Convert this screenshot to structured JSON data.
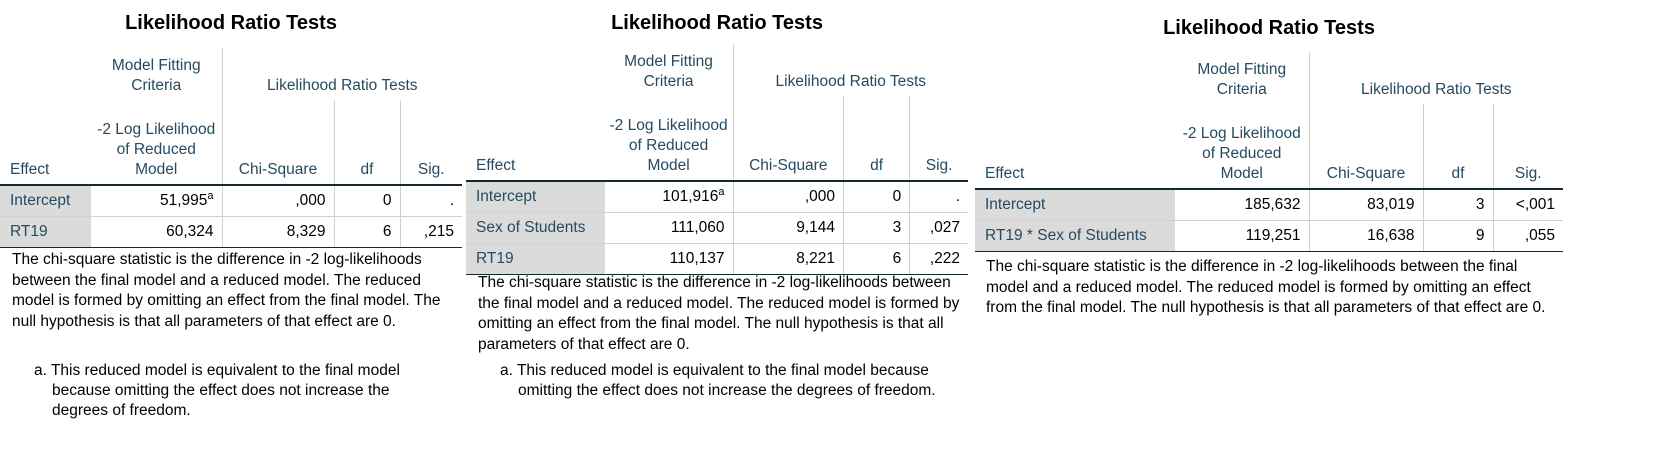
{
  "tables": [
    {
      "title": "Likelihood Ratio Tests",
      "group_headers": [
        "Model Fitting Criteria",
        "Likelihood Ratio Tests"
      ],
      "col_headers": [
        "Effect",
        "-2 Log Likelihood of Reduced Model",
        "Chi-Square",
        "df",
        "Sig."
      ],
      "rows": [
        {
          "effect": "Intercept",
          "ll": "51,995",
          "ll_sup": "a",
          "chi": ",000",
          "df": "0",
          "sig": "."
        },
        {
          "effect": "RT19",
          "ll": "60,324",
          "ll_sup": "",
          "chi": "8,329",
          "df": "6",
          "sig": ",215"
        }
      ],
      "note": "The chi-square statistic is the difference in -2 log-likelihoods between the final model and a reduced model. The reduced model is formed by omitting an effect from the final model. The null hypothesis is that all parameters of that effect are 0.",
      "footnote": "a. This reduced model is equivalent to the final model because omitting the effect does not increase the degrees of freedom."
    },
    {
      "title": "Likelihood Ratio Tests",
      "group_headers": [
        "Model Fitting Criteria",
        "Likelihood Ratio Tests"
      ],
      "col_headers": [
        "Effect",
        "-2 Log Likelihood of Reduced Model",
        "Chi-Square",
        "df",
        "Sig."
      ],
      "rows": [
        {
          "effect": "Intercept",
          "ll": "101,916",
          "ll_sup": "a",
          "chi": ",000",
          "df": "0",
          "sig": "."
        },
        {
          "effect": "Sex of Students",
          "ll": "111,060",
          "ll_sup": "",
          "chi": "9,144",
          "df": "3",
          "sig": ",027"
        },
        {
          "effect": "RT19",
          "ll": "110,137",
          "ll_sup": "",
          "chi": "8,221",
          "df": "6",
          "sig": ",222"
        }
      ],
      "note": "The chi-square statistic is the difference in -2 log-likelihoods between the final model and a reduced model. The reduced model is formed by omitting an effect from the final model. The null hypothesis is that all parameters of that effect are 0.",
      "footnote": "a. This reduced model is equivalent to the final model because omitting the effect does not increase the degrees of freedom."
    },
    {
      "title": "Likelihood Ratio Tests",
      "group_headers": [
        "Model Fitting Criteria",
        "Likelihood Ratio Tests"
      ],
      "col_headers": [
        "Effect",
        "-2 Log Likelihood of Reduced Model",
        "Chi-Square",
        "df",
        "Sig."
      ],
      "rows": [
        {
          "effect": "Intercept",
          "ll": "185,632",
          "ll_sup": "",
          "chi": "83,019",
          "df": "3",
          "sig": "<,001"
        },
        {
          "effect": "RT19 * Sex of Students",
          "ll": "119,251",
          "ll_sup": "",
          "chi": "16,638",
          "df": "9",
          "sig": ",055"
        }
      ],
      "note": "The chi-square statistic is the difference in -2 log-likelihoods between the final model and a reduced model. The reduced model is formed by omitting an effect from the final model. The null hypothesis is that all parameters of that effect are 0."
    }
  ]
}
